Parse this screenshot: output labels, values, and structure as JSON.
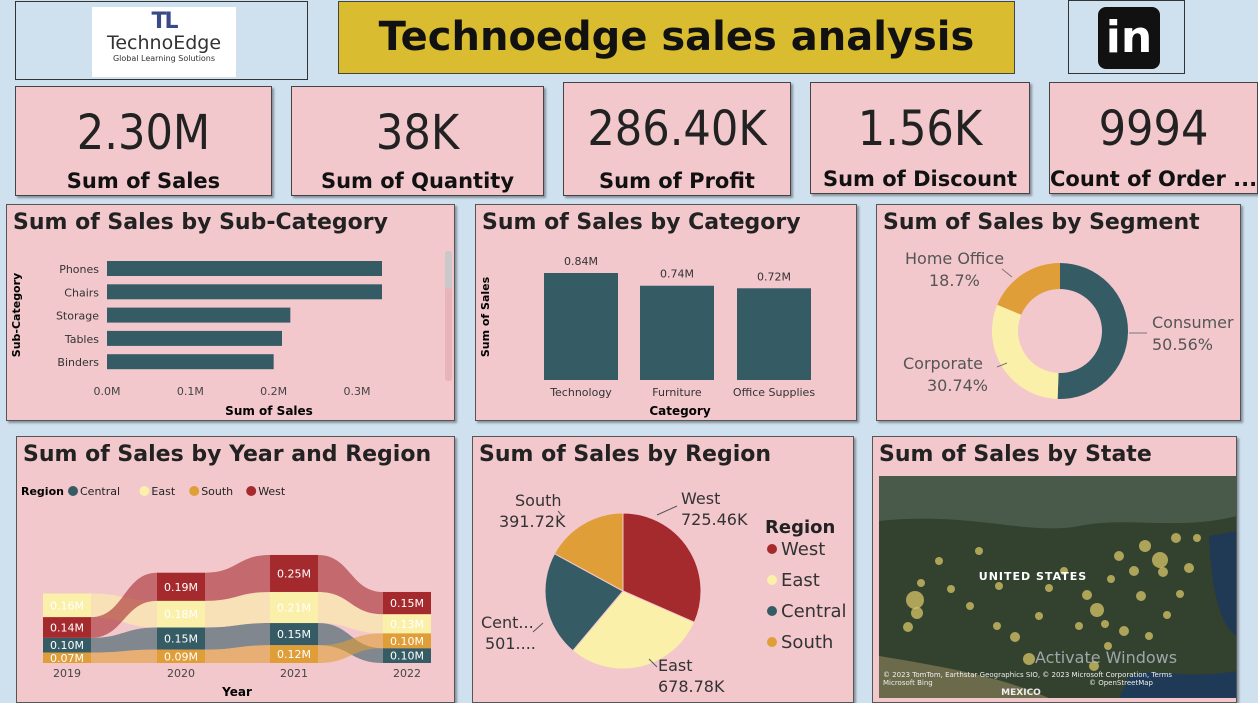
{
  "header": {
    "logo": {
      "mark": "TL",
      "name": "TechnoEdge",
      "tagline": "Global Learning Solutions"
    },
    "title": "Technoedge sales analysis",
    "social_icon": "linkedin-icon",
    "social_label": "in"
  },
  "kpis": [
    {
      "value": "2.30M",
      "label": "Sum of Sales"
    },
    {
      "value": "38K",
      "label": "Sum of Quantity"
    },
    {
      "value": "286.40K",
      "label": "Sum of Profit"
    },
    {
      "value": "1.56K",
      "label": "Sum of Discount"
    },
    {
      "value": "9994",
      "label": "Count of Order ..."
    }
  ],
  "colors": {
    "central": "#355b65",
    "east": "#fbf0a9",
    "south": "#e09e38",
    "west": "#a52a2e",
    "bar": "#355b65"
  },
  "map": {
    "title": "Sum of Sales by State",
    "country_label": "UNITED STATES",
    "neighbor_label": "MEXICO",
    "attribution": "© 2023 TomTom, Earthstar Geographics SIO, © 2023 Microsoft Corporation, Terms",
    "bing": "Microsoft Bing",
    "osm": "© OpenStreetMap",
    "watermark": "Activate Windows"
  },
  "chart_data": [
    {
      "type": "bar",
      "title": "Sum of Sales by Sub-Category",
      "orientation": "horizontal",
      "categories": [
        "Phones",
        "Chairs",
        "Storage",
        "Tables",
        "Binders"
      ],
      "values": [
        0.33,
        0.33,
        0.22,
        0.21,
        0.2
      ],
      "xlabel": "Sum of Sales",
      "ylabel": "Sub-Category",
      "xticks": [
        "0.0M",
        "0.1M",
        "0.2M",
        "0.3M"
      ],
      "xlim": [
        0,
        0.33
      ]
    },
    {
      "type": "bar",
      "title": "Sum of Sales by Category",
      "categories": [
        "Technology",
        "Furniture",
        "Office Supplies"
      ],
      "values": [
        0.84,
        0.74,
        0.72
      ],
      "data_labels": [
        "0.84M",
        "0.74M",
        "0.72M"
      ],
      "xlabel": "Category",
      "ylabel": "Sum of Sales"
    },
    {
      "type": "pie",
      "style": "donut",
      "title": "Sum of Sales by Segment",
      "labels": [
        "Consumer",
        "Corporate",
        "Home Office"
      ],
      "values": [
        50.56,
        30.74,
        18.7
      ],
      "data_labels": [
        "50.56%",
        "30.74%",
        "18.7%"
      ]
    },
    {
      "type": "area",
      "style": "ribbon",
      "title": "Sum of Sales by Year and Region",
      "legend_title": "Region",
      "categories": [
        "2019",
        "2020",
        "2021",
        "2022"
      ],
      "xlabel": "Year",
      "series": [
        {
          "name": "Central",
          "values": [
            0.1,
            0.15,
            0.15,
            0.1
          ],
          "labels": [
            "0.10M",
            "0.15M",
            "0.15M",
            "0.10M"
          ]
        },
        {
          "name": "East",
          "values": [
            0.16,
            0.18,
            0.21,
            0.13
          ],
          "labels": [
            "0.16M",
            "0.18M",
            "0.21M",
            "0.13M"
          ]
        },
        {
          "name": "South",
          "values": [
            0.07,
            0.09,
            0.12,
            0.1
          ],
          "labels": [
            "0.07M",
            "0.09M",
            "0.12M",
            "0.10M"
          ]
        },
        {
          "name": "West",
          "values": [
            0.14,
            0.19,
            0.25,
            0.15
          ],
          "labels": [
            "0.14M",
            "0.19M",
            "0.25M",
            "0.15M"
          ]
        }
      ]
    },
    {
      "type": "pie",
      "title": "Sum of Sales by Region",
      "legend_title": "Region",
      "labels": [
        "West",
        "East",
        "Central",
        "South"
      ],
      "values": [
        725.46,
        678.78,
        501.24,
        391.72
      ],
      "data_labels": [
        [
          "West",
          "725.46K"
        ],
        [
          "East",
          "678.78K"
        ],
        [
          "Cent...",
          "501...."
        ],
        [
          "South",
          "391.72K"
        ]
      ]
    }
  ]
}
